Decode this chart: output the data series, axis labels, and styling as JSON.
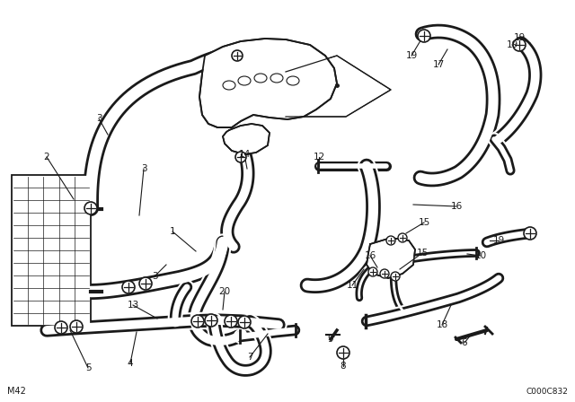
{
  "bg_color": "#ffffff",
  "line_color": "#1a1a1a",
  "fig_width": 6.4,
  "fig_height": 4.48,
  "dpi": 100,
  "bottom_left_label": "M42",
  "bottom_right_label": "C000C832"
}
